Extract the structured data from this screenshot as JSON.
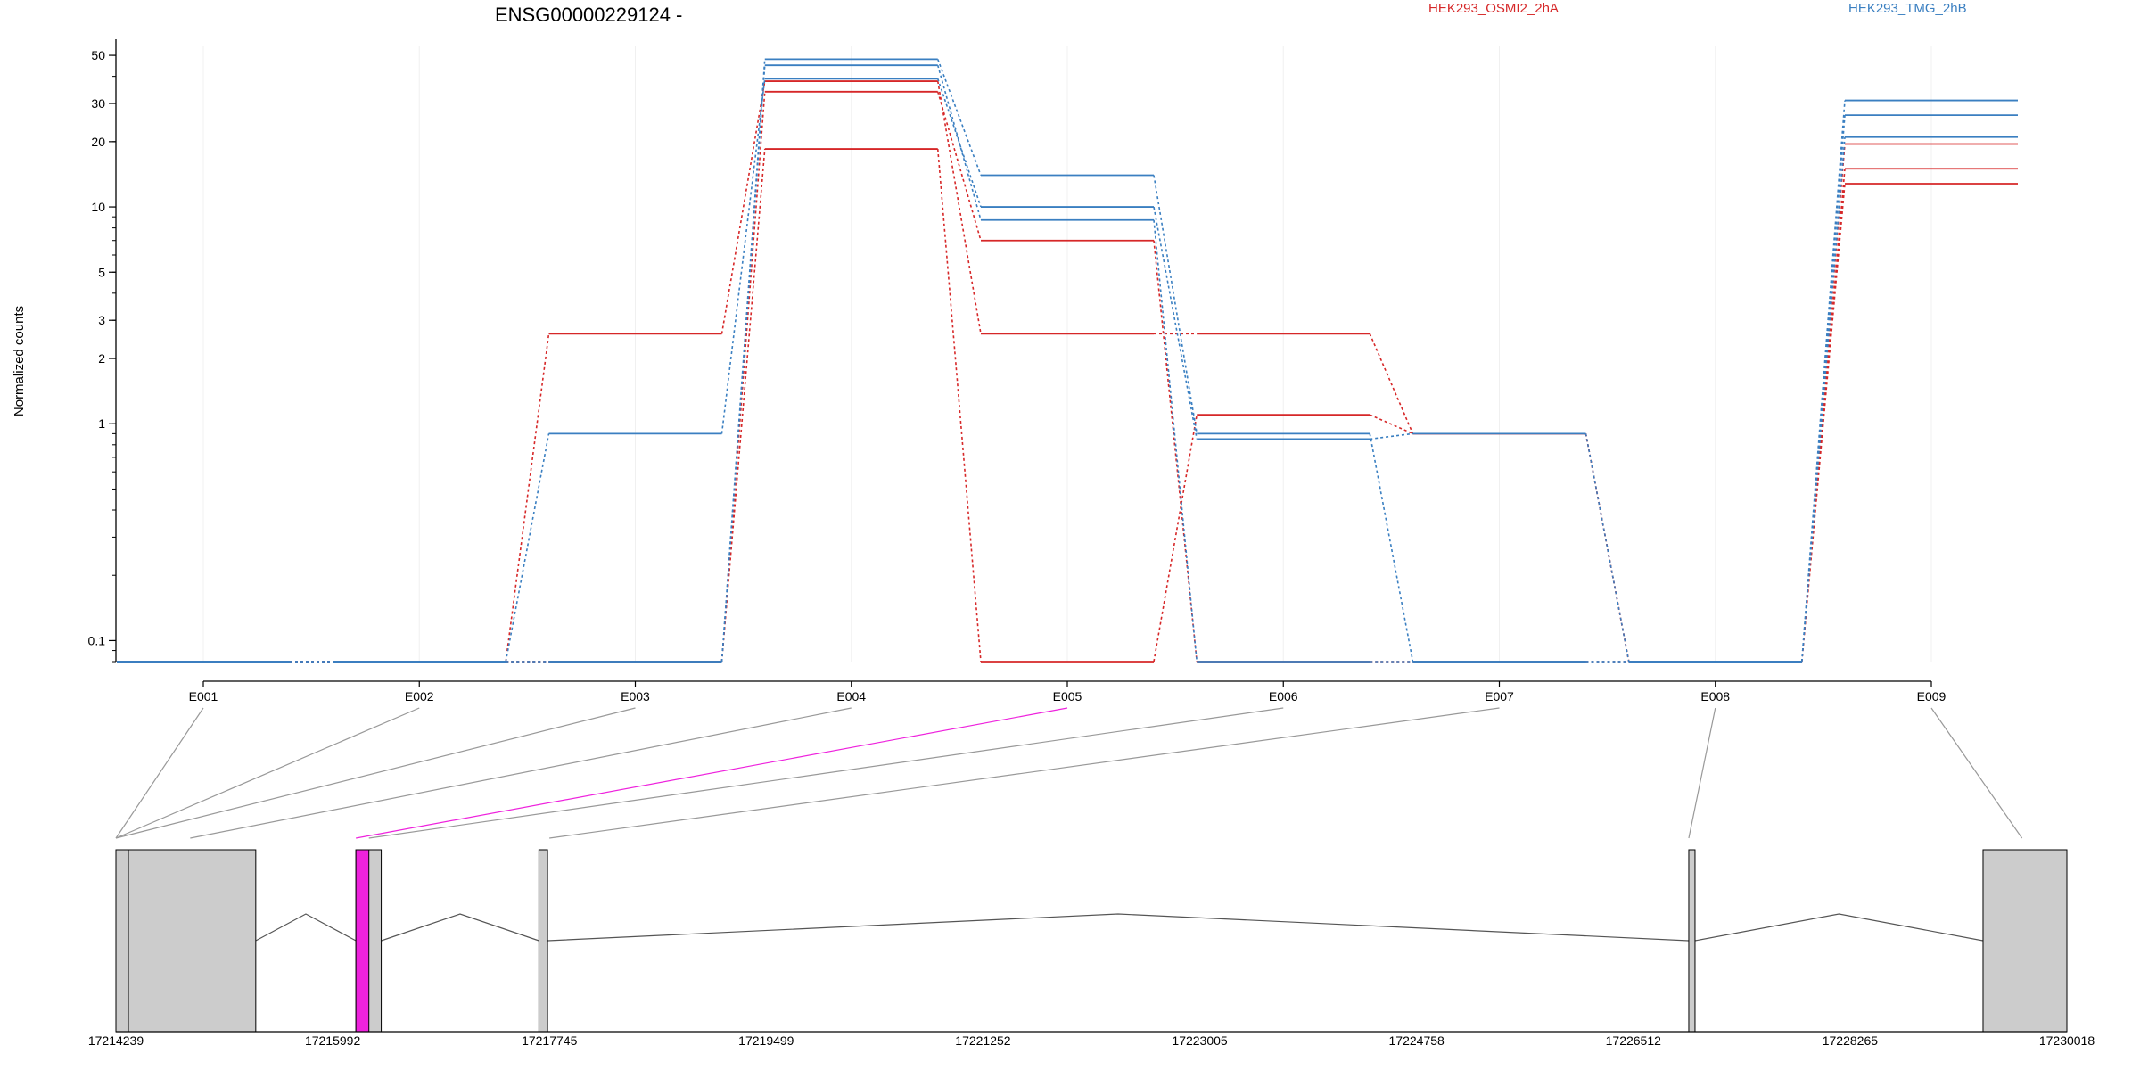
{
  "title": "ENSG00000229124 -",
  "legend": [
    {
      "label": "HEK293_OSMI2_2hA",
      "color": "#d62728"
    },
    {
      "label": "HEK293_TMG_2hB",
      "color": "#3a7fc1"
    }
  ],
  "highlight_color": "#ee22dd",
  "exon_fill_color": "#cccccc",
  "chart_data": {
    "type": "line",
    "title": "ENSG00000229124 -",
    "ylabel": "Normalized counts",
    "xlabel": "",
    "yscale": "log",
    "ylim": [
      0.08,
      55
    ],
    "yticks": [
      0.1,
      1,
      2,
      3,
      5,
      10,
      20,
      30,
      50
    ],
    "ytick_labels": [
      "0.1",
      "1",
      "2",
      "3",
      "5",
      "10",
      "20",
      "30",
      "50"
    ],
    "categories": [
      "E001",
      "E002",
      "E003",
      "E004",
      "E005",
      "E006",
      "E007",
      "E008",
      "E009"
    ],
    "floor_value": 0.08,
    "series": [
      {
        "group": 0,
        "values": [
          0.08,
          0.08,
          2.6,
          38,
          2.6,
          2.6,
          0.9,
          0.08,
          19.5
        ]
      },
      {
        "group": 0,
        "values": [
          0.08,
          0.08,
          0.08,
          18.5,
          0.08,
          1.1,
          0.9,
          0.08,
          15
        ]
      },
      {
        "group": 0,
        "values": [
          0.08,
          0.08,
          0.08,
          34,
          7,
          0.08,
          0.08,
          0.08,
          12.8
        ]
      },
      {
        "group": 1,
        "values": [
          0.08,
          0.08,
          0.9,
          39,
          10,
          0.85,
          0.9,
          0.08,
          31
        ]
      },
      {
        "group": 1,
        "values": [
          0.08,
          0.08,
          0.08,
          48,
          14,
          0.9,
          0.08,
          0.08,
          26.5
        ]
      },
      {
        "group": 1,
        "values": [
          0.08,
          0.08,
          0.08,
          45,
          8.7,
          0.08,
          0.08,
          0.08,
          21
        ]
      }
    ],
    "highlighted_exon": "E005",
    "genomic_axis": {
      "range": [
        17214239,
        17230018
      ],
      "tick_labels": [
        "17214239",
        "17215992",
        "17217745",
        "17219499",
        "17221252",
        "17223005",
        "17224758",
        "17226512",
        "17228265",
        "17230018"
      ]
    },
    "exons": [
      {
        "id": "E001",
        "start": 17214239,
        "end": 17214340
      },
      {
        "id": "E002",
        "start": 17214340,
        "end": 17215370
      },
      {
        "id": "E003",
        "start": 17215370,
        "end": 17215370
      },
      {
        "id": "E004",
        "start": 17215370,
        "end": 17215370
      },
      {
        "id": "E005",
        "start": 17216180,
        "end": 17216285
      },
      {
        "id": "E006",
        "start": 17216285,
        "end": 17216385
      },
      {
        "id": "E007",
        "start": 17217660,
        "end": 17217730
      },
      {
        "id": "E008",
        "start": 17226960,
        "end": 17227010
      },
      {
        "id": "E009",
        "start": 17229340,
        "end": 17230018
      }
    ],
    "exon_lines": [
      {
        "exon": "E001",
        "start": 17214239,
        "end": 17214240
      },
      {
        "exon": "E002",
        "start": 17214239,
        "end": 17214240
      },
      {
        "exon": "E003",
        "start": 17214239,
        "end": 17214240
      },
      {
        "exon": "E004",
        "start": 17214840,
        "end": 17214841
      },
      {
        "exon": "E005",
        "start": 17216180,
        "end": 17216285
      },
      {
        "exon": "E006",
        "start": 17216285,
        "end": 17216385
      },
      {
        "exon": "E007",
        "start": 17217745,
        "end": 17217746
      },
      {
        "exon": "E008",
        "start": 17226960,
        "end": 17227010
      },
      {
        "exon": "E009",
        "start": 17229655,
        "end": 17229656
      }
    ],
    "exon_boxes": [
      {
        "start": 17214239,
        "end": 17215370
      },
      {
        "start": 17216180,
        "end": 17216385
      },
      {
        "start": 17217660,
        "end": 17217730
      },
      {
        "start": 17226960,
        "end": 17227010
      },
      {
        "start": 17229340,
        "end": 17230018
      }
    ],
    "introns": [
      {
        "from": 17215370,
        "to": 17216180
      },
      {
        "from": 17216385,
        "to": 17217660
      },
      {
        "from": 17217730,
        "to": 17226960
      },
      {
        "from": 17227010,
        "to": 17229340
      }
    ]
  }
}
